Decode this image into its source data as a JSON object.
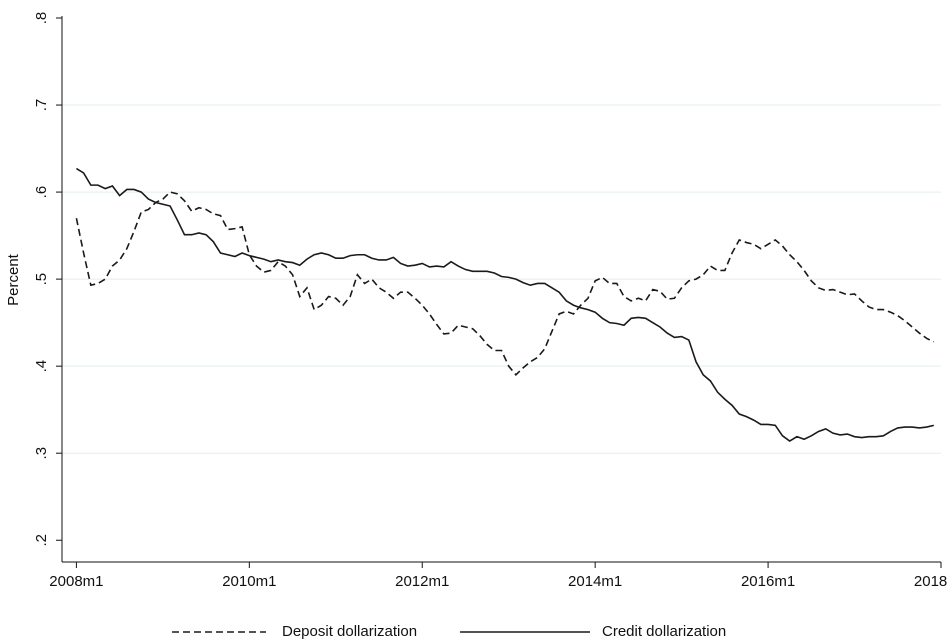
{
  "chart_data": {
    "type": "line",
    "y_label": "Percent",
    "x": [
      "2008m1",
      "2008m2",
      "2008m3",
      "2008m4",
      "2008m5",
      "2008m6",
      "2008m7",
      "2008m8",
      "2008m9",
      "2008m10",
      "2008m11",
      "2008m12",
      "2009m1",
      "2009m2",
      "2009m3",
      "2009m4",
      "2009m5",
      "2009m6",
      "2009m7",
      "2009m8",
      "2009m9",
      "2009m10",
      "2009m11",
      "2009m12",
      "2010m1",
      "2010m2",
      "2010m3",
      "2010m4",
      "2010m5",
      "2010m6",
      "2010m7",
      "2010m8",
      "2010m9",
      "2010m10",
      "2010m11",
      "2010m12",
      "2011m1",
      "2011m2",
      "2011m3",
      "2011m4",
      "2011m5",
      "2011m6",
      "2011m7",
      "2011m8",
      "2011m9",
      "2011m10",
      "2011m11",
      "2011m12",
      "2012m1",
      "2012m2",
      "2012m3",
      "2012m4",
      "2012m5",
      "2012m6",
      "2012m7",
      "2012m8",
      "2012m9",
      "2012m10",
      "2012m11",
      "2012m12",
      "2013m1",
      "2013m2",
      "2013m3",
      "2013m4",
      "2013m5",
      "2013m6",
      "2013m7",
      "2013m8",
      "2013m9",
      "2013m10",
      "2013m11",
      "2013m12",
      "2014m1",
      "2014m2",
      "2014m3",
      "2014m4",
      "2014m5",
      "2014m6",
      "2014m7",
      "2014m8",
      "2014m9",
      "2014m10",
      "2014m11",
      "2014m12",
      "2015m1",
      "2015m2",
      "2015m3",
      "2015m4",
      "2015m5",
      "2015m6",
      "2015m7",
      "2015m8",
      "2015m9",
      "2015m10",
      "2015m11",
      "2015m12",
      "2016m1",
      "2016m2",
      "2016m3",
      "2016m4",
      "2016m5",
      "2016m6",
      "2016m7",
      "2016m8",
      "2016m9",
      "2016m10",
      "2016m11",
      "2016m12",
      "2017m1",
      "2017m2",
      "2017m3",
      "2017m4",
      "2017m5",
      "2017m6",
      "2017m7",
      "2017m8",
      "2017m9",
      "2017m10",
      "2017m11",
      "2017m12"
    ],
    "series": [
      {
        "name": "Deposit dollarization",
        "color": "#1a1a1a",
        "line_style": "dashed",
        "values": [
          0.57,
          0.53,
          0.493,
          0.495,
          0.5,
          0.515,
          0.522,
          0.535,
          0.555,
          0.577,
          0.58,
          0.588,
          0.592,
          0.6,
          0.598,
          0.59,
          0.578,
          0.582,
          0.58,
          0.575,
          0.573,
          0.557,
          0.558,
          0.56,
          0.528,
          0.515,
          0.508,
          0.51,
          0.52,
          0.515,
          0.505,
          0.48,
          0.49,
          0.465,
          0.47,
          0.48,
          0.478,
          0.47,
          0.48,
          0.505,
          0.495,
          0.5,
          0.49,
          0.485,
          0.478,
          0.485,
          0.485,
          0.478,
          0.47,
          0.46,
          0.448,
          0.437,
          0.438,
          0.447,
          0.445,
          0.443,
          0.435,
          0.425,
          0.418,
          0.418,
          0.4,
          0.39,
          0.398,
          0.405,
          0.41,
          0.42,
          0.44,
          0.46,
          0.463,
          0.46,
          0.47,
          0.478,
          0.498,
          0.502,
          0.495,
          0.495,
          0.48,
          0.475,
          0.478,
          0.475,
          0.488,
          0.486,
          0.477,
          0.478,
          0.49,
          0.498,
          0.5,
          0.505,
          0.515,
          0.51,
          0.51,
          0.53,
          0.545,
          0.542,
          0.54,
          0.535,
          0.54,
          0.545,
          0.538,
          0.528,
          0.52,
          0.51,
          0.498,
          0.49,
          0.487,
          0.488,
          0.485,
          0.482,
          0.483,
          0.475,
          0.468,
          0.465,
          0.465,
          0.462,
          0.458,
          0.452,
          0.445,
          0.438,
          0.432,
          0.428
        ]
      },
      {
        "name": "Credit dollarization",
        "color": "#1a1a1a",
        "line_style": "solid",
        "values": [
          0.627,
          0.622,
          0.608,
          0.608,
          0.604,
          0.607,
          0.596,
          0.603,
          0.603,
          0.6,
          0.592,
          0.588,
          0.586,
          0.584,
          0.568,
          0.551,
          0.551,
          0.553,
          0.551,
          0.543,
          0.53,
          0.528,
          0.526,
          0.53,
          0.527,
          0.525,
          0.523,
          0.52,
          0.522,
          0.52,
          0.519,
          0.516,
          0.523,
          0.528,
          0.53,
          0.528,
          0.524,
          0.524,
          0.527,
          0.528,
          0.528,
          0.524,
          0.522,
          0.522,
          0.525,
          0.518,
          0.515,
          0.516,
          0.518,
          0.514,
          0.515,
          0.514,
          0.52,
          0.515,
          0.511,
          0.509,
          0.509,
          0.509,
          0.507,
          0.503,
          0.502,
          0.5,
          0.496,
          0.493,
          0.495,
          0.495,
          0.49,
          0.485,
          0.475,
          0.47,
          0.467,
          0.465,
          0.462,
          0.455,
          0.45,
          0.449,
          0.447,
          0.455,
          0.456,
          0.455,
          0.45,
          0.445,
          0.438,
          0.433,
          0.434,
          0.43,
          0.405,
          0.39,
          0.383,
          0.37,
          0.362,
          0.355,
          0.345,
          0.342,
          0.338,
          0.333,
          0.333,
          0.332,
          0.32,
          0.314,
          0.319,
          0.316,
          0.32,
          0.325,
          0.328,
          0.323,
          0.321,
          0.322,
          0.319,
          0.318,
          0.319,
          0.319,
          0.32,
          0.325,
          0.329,
          0.33,
          0.33,
          0.329,
          0.33,
          0.332
        ]
      }
    ],
    "xlim": [
      "2007m11",
      "2018m1"
    ],
    "xticks": [
      "2008m1",
      "2010m1",
      "2012m1",
      "2014m1",
      "2016m1",
      "2018m1"
    ],
    "ylim": [
      0.175,
      0.8
    ],
    "yticks": [
      {
        "value": 0.2,
        "label": ".2"
      },
      {
        "value": 0.3,
        "label": ".3"
      },
      {
        "value": 0.4,
        "label": ".4"
      },
      {
        "value": 0.5,
        "label": ".5"
      },
      {
        "value": 0.6,
        "label": ".6"
      },
      {
        "value": 0.7,
        "label": ".7"
      },
      {
        "value": 0.8,
        "label": ".8"
      }
    ],
    "grid": true,
    "legend": "bottom"
  }
}
